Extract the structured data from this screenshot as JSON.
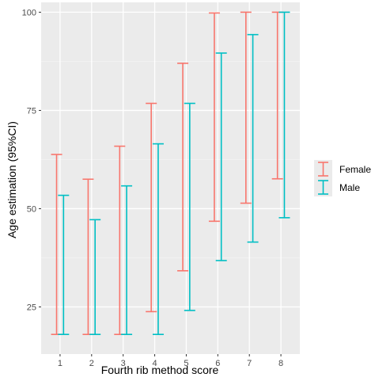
{
  "chart_data": {
    "type": "errorbar",
    "xlabel": "Fourth rib method score",
    "ylabel": "Age estimation (95%CI)",
    "categories": [
      "1",
      "2",
      "3",
      "4",
      "5",
      "6",
      "7",
      "8"
    ],
    "x_range": [
      0.4,
      8.6
    ],
    "ylim": [
      13,
      102.5
    ],
    "y_ticks": [
      25,
      50,
      75,
      100
    ],
    "grid": true,
    "legend_position": "right",
    "series": [
      {
        "name": "Female",
        "color": "#F8766D",
        "lower": [
          18,
          18,
          18,
          23.8,
          34.2,
          46.8,
          51.4,
          57.6
        ],
        "upper": [
          63.8,
          57.5,
          65.9,
          76.8,
          87,
          99.8,
          100,
          100
        ]
      },
      {
        "name": "Male",
        "color": "#00BFC4",
        "lower": [
          18,
          18,
          18,
          18,
          24.1,
          36.8,
          41.5,
          47.7
        ],
        "upper": [
          53.4,
          47.2,
          55.8,
          66.5,
          76.8,
          89.6,
          94.3,
          100
        ]
      }
    ]
  }
}
